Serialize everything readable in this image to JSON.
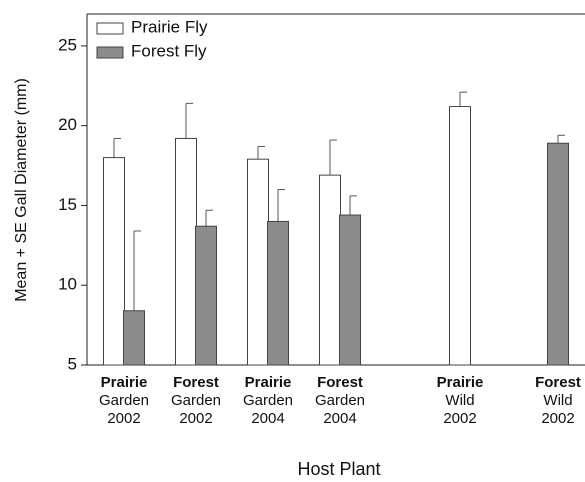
{
  "chart_data": {
    "type": "bar",
    "y_label": "Mean + SE Gall Diameter (mm)",
    "x_label": "Host Plant",
    "categories": [
      [
        "Prairie",
        "Garden",
        "2002"
      ],
      [
        "Forest",
        "Garden",
        "2002"
      ],
      [
        "Prairie",
        "Garden",
        "2004"
      ],
      [
        "Forest",
        "Garden",
        "2004"
      ],
      [
        "Prairie",
        "Wild",
        "2002"
      ],
      [
        "Forest",
        "Wild",
        "2002"
      ]
    ],
    "series": [
      {
        "name": "Prairie Fly",
        "color": "#ffffff",
        "values": [
          18.0,
          19.2,
          17.9,
          16.9,
          21.2,
          null
        ],
        "errors": [
          1.2,
          2.2,
          0.8,
          2.2,
          0.9,
          null
        ]
      },
      {
        "name": "Forest Fly",
        "color": "#8c8c8c",
        "values": [
          8.4,
          13.7,
          14.0,
          14.4,
          null,
          18.9
        ],
        "errors": [
          5.0,
          1.0,
          2.0,
          1.2,
          null,
          0.5
        ]
      }
    ],
    "ylim": [
      5,
      27
    ],
    "yticks": [
      5,
      10,
      15,
      20,
      25
    ],
    "legend": "upper left"
  }
}
